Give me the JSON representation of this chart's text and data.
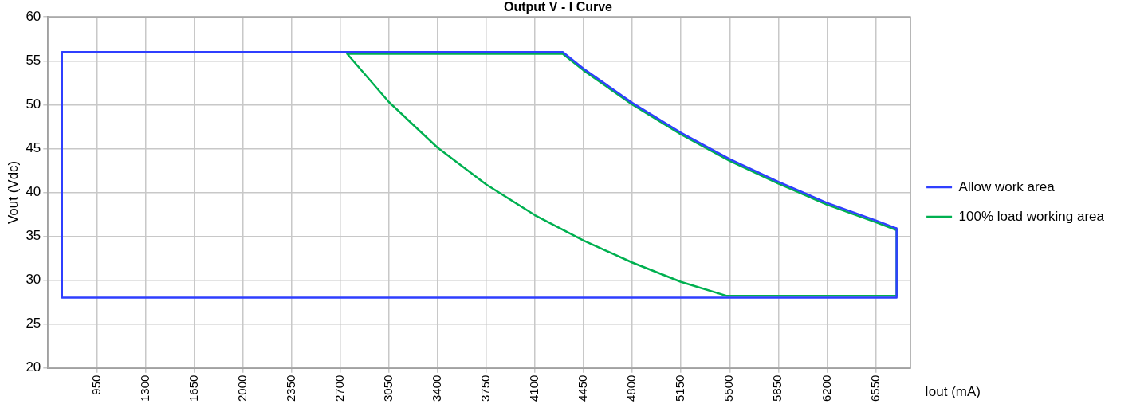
{
  "chart_data": {
    "type": "line",
    "title": "Output V - I Curve",
    "xlabel": "Iout (mA)",
    "ylabel": "Vout (Vdc)",
    "xlim": [
      600,
      6800
    ],
    "xticks": [
      950,
      1300,
      1650,
      2000,
      2350,
      2700,
      3050,
      3400,
      3750,
      4100,
      4450,
      4800,
      5150,
      5500,
      5850,
      6200,
      6550
    ],
    "ylim": [
      20,
      60
    ],
    "yticks": [
      20,
      25,
      30,
      35,
      40,
      45,
      50,
      55,
      60
    ],
    "grid": true,
    "legend": "right",
    "marker": "none",
    "line_style": "solid",
    "series": [
      {
        "name": "Allow work area",
        "color": "#2f3fff",
        "x": [
          700,
          700,
          4300,
          4450,
          4800,
          5150,
          5500,
          5850,
          6200,
          6550,
          6700,
          6700,
          null,
          700,
          6700
        ],
        "values": [
          28,
          56,
          56,
          54.1,
          50.2,
          46.8,
          43.8,
          41.2,
          38.8,
          36.8,
          35.9,
          28,
          null,
          28,
          28
        ]
      },
      {
        "name": "100% load working area",
        "color": "#00b050",
        "x": [
          2750,
          4300,
          4450,
          4800,
          5150,
          5500,
          5850,
          6200,
          6550,
          6700,
          6700,
          null,
          2750,
          3050,
          3400,
          3750,
          4100,
          4450,
          4800,
          5150,
          5480,
          6700
        ],
        "values": [
          55.8,
          55.8,
          53.9,
          50.0,
          46.6,
          43.6,
          41.0,
          38.6,
          36.6,
          35.7,
          28.2,
          null,
          55.8,
          50.3,
          45.1,
          40.9,
          37.4,
          34.5,
          32.0,
          29.8,
          28.2,
          28.2
        ]
      }
    ]
  }
}
